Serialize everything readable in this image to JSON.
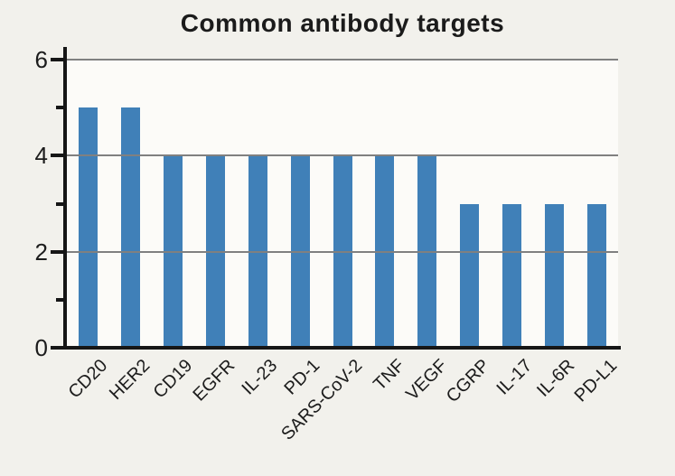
{
  "chart_data": {
    "type": "bar",
    "title": "Common antibody targets",
    "categories": [
      "CD20",
      "HER2",
      "CD19",
      "EGFR",
      "IL-23",
      "PD-1",
      "SARS-CoV-2",
      "TNF",
      "VEGF",
      "CGRP",
      "IL-17",
      "IL-6R",
      "PD-L1"
    ],
    "values": [
      5,
      5,
      4,
      4,
      4,
      4,
      4,
      4,
      4,
      3,
      3,
      3,
      3
    ],
    "xlabel": "",
    "ylabel": "",
    "ylim": [
      0,
      6
    ],
    "ytick_major_values": [
      0,
      2,
      4,
      6
    ],
    "ytick_major_labels": [
      "0",
      "2",
      "4",
      "6"
    ],
    "ytick_minor_values": [
      1,
      3,
      5
    ],
    "gridline_values": [
      2,
      4,
      6
    ],
    "grid": true,
    "legend_position": "none",
    "bar_color": "#4080b8",
    "background_color": "#f2f1ec",
    "plot_background_color": "#fcfbf8",
    "gridline_color": "#808080",
    "axis_color": "#161616",
    "text_color": "#1c1c1c"
  }
}
